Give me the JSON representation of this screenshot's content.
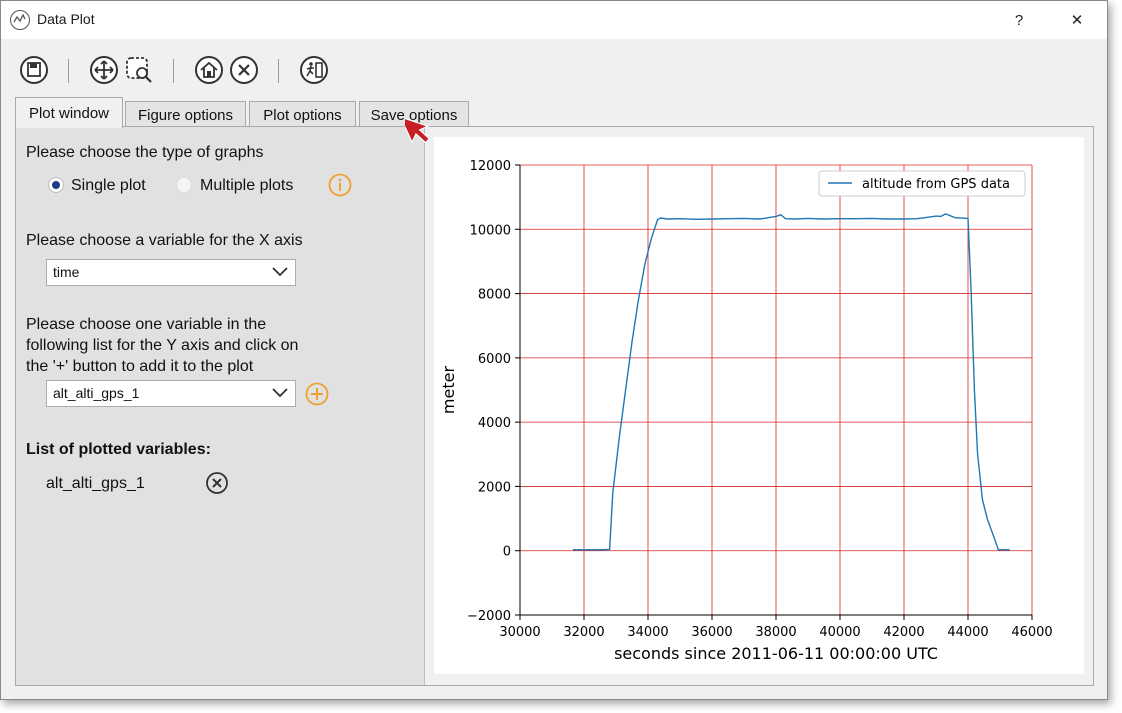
{
  "window": {
    "title": "Data Plot",
    "help_label": "?",
    "close_label": "✕"
  },
  "toolbar": [
    {
      "icon": "save-icon"
    },
    {
      "icon": "pan-icon"
    },
    {
      "icon": "zoom-rect-icon"
    },
    {
      "icon": "home-icon"
    },
    {
      "icon": "clear-icon"
    },
    {
      "icon": "exit-icon"
    }
  ],
  "tabs": [
    "Plot window",
    "Figure options",
    "Plot options",
    "Save options"
  ],
  "left": {
    "graph_type_prompt": "Please choose the type of graphs",
    "single_plot": "Single plot",
    "multiple_plots": "Multiple plots",
    "x_prompt": "Please choose a variable for the X axis",
    "x_value": "time",
    "y_prompt_line1": "Please choose one variable in the",
    "y_prompt_line2": "following list for the Y axis and click on",
    "y_prompt_line3": "the '+' button to add it to the plot",
    "y_value": "alt_alti_gps_1",
    "list_heading": "List of plotted variables:",
    "plotted": [
      "alt_alti_gps_1"
    ]
  },
  "colors": {
    "series": "#1f77b4",
    "grid": "#d62728",
    "accent": "#f0a030"
  },
  "chart_data": {
    "type": "line",
    "xlabel": "seconds since 2011-06-11 00:00:00 UTC",
    "ylabel": "meter",
    "xlim": [
      30000,
      46000
    ],
    "ylim": [
      -2000,
      12000
    ],
    "xticks": [
      30000,
      32000,
      34000,
      36000,
      38000,
      40000,
      42000,
      44000,
      46000
    ],
    "yticks": [
      -2000,
      0,
      2000,
      4000,
      6000,
      8000,
      10000,
      12000
    ],
    "grid": true,
    "legend_position": "top-right",
    "series": [
      {
        "name": "altitude from GPS data",
        "x": [
          31650,
          32000,
          32500,
          32800,
          32900,
          33100,
          33300,
          33500,
          33700,
          33900,
          34100,
          34300,
          34400,
          34600,
          35000,
          35500,
          36000,
          36500,
          37000,
          37500,
          38000,
          38150,
          38300,
          38600,
          39000,
          39500,
          40000,
          40500,
          41000,
          41500,
          42000,
          42400,
          42800,
          43000,
          43150,
          43300,
          43600,
          44000,
          44100,
          44200,
          44300,
          44450,
          44600,
          44800,
          44950,
          45050,
          45300
        ],
        "y": [
          30,
          30,
          30,
          40,
          1800,
          3500,
          5000,
          6500,
          7800,
          8900,
          9700,
          10300,
          10350,
          10320,
          10330,
          10310,
          10320,
          10330,
          10340,
          10320,
          10400,
          10450,
          10330,
          10320,
          10340,
          10320,
          10330,
          10330,
          10340,
          10320,
          10320,
          10330,
          10380,
          10410,
          10400,
          10480,
          10360,
          10340,
          8000,
          5000,
          3000,
          1600,
          1000,
          450,
          30,
          30,
          30
        ]
      }
    ]
  }
}
